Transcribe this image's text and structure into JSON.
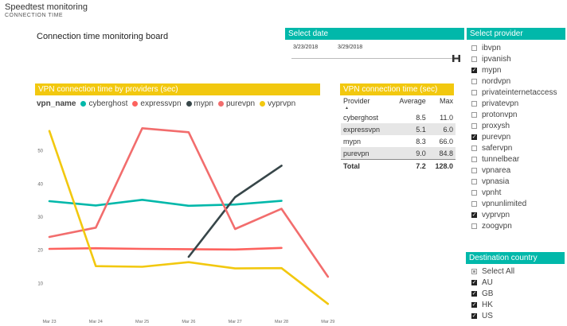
{
  "app": {
    "title": "Speedtest monitoring",
    "subtitle": "CONNECTION TIME"
  },
  "board_title": "Connection time monitoring board",
  "date_slicer": {
    "header": "Select date",
    "start": "3/23/2018",
    "end": "3/29/2018"
  },
  "provider_slicer": {
    "header": "Select provider",
    "items": [
      {
        "label": "ibvpn",
        "checked": false
      },
      {
        "label": "ipvanish",
        "checked": false
      },
      {
        "label": "mypn",
        "checked": true
      },
      {
        "label": "nordvpn",
        "checked": false
      },
      {
        "label": "privateinternetaccess",
        "checked": false
      },
      {
        "label": "privatevpn",
        "checked": false
      },
      {
        "label": "protonvpn",
        "checked": false
      },
      {
        "label": "proxysh",
        "checked": false
      },
      {
        "label": "purevpn",
        "checked": true
      },
      {
        "label": "safervpn",
        "checked": false
      },
      {
        "label": "tunnelbear",
        "checked": false
      },
      {
        "label": "vpnarea",
        "checked": false
      },
      {
        "label": "vpnasia",
        "checked": false
      },
      {
        "label": "vpnht",
        "checked": false
      },
      {
        "label": "vpnunlimited",
        "checked": false
      },
      {
        "label": "vyprvpn",
        "checked": true
      },
      {
        "label": "zoogvpn",
        "checked": false
      }
    ]
  },
  "destination_slicer": {
    "header": "Destination country",
    "items": [
      {
        "label": "Select All",
        "checked": false,
        "partial": true
      },
      {
        "label": "AU",
        "checked": true
      },
      {
        "label": "GB",
        "checked": true
      },
      {
        "label": "HK",
        "checked": true
      },
      {
        "label": "US",
        "checked": true
      }
    ]
  },
  "chart": {
    "header": "VPN connection time by providers (sec)",
    "legend_title": "vpn_name"
  },
  "table": {
    "header": "VPN connection time (sec)",
    "columns": [
      "Provider",
      "Average",
      "Max"
    ],
    "rows": [
      {
        "provider": "cyberghost",
        "average": "8.5",
        "max": "11.0"
      },
      {
        "provider": "expressvpn",
        "average": "5.1",
        "max": "6.0"
      },
      {
        "provider": "mypn",
        "average": "8.3",
        "max": "66.0"
      },
      {
        "provider": "purevpn",
        "average": "9.0",
        "max": "84.8"
      }
    ],
    "total": {
      "label": "Total",
      "average": "7.2",
      "max": "128.0"
    }
  },
  "chart_data": {
    "type": "line",
    "title": "VPN connection time by providers (sec)",
    "legend_title": "vpn_name",
    "legend_position": "top-left",
    "categories": [
      "Mar 23",
      "Mar 24",
      "Mar 25",
      "Mar 26",
      "Mar 27",
      "Mar 28",
      "Mar 29"
    ],
    "yticks": [
      10,
      20,
      30,
      40,
      50
    ],
    "ylim": [
      0,
      60
    ],
    "xlabel": "",
    "ylabel": "",
    "series": [
      {
        "name": "cyberghost",
        "color": "#01b8aa",
        "values": [
          34.8,
          33.5,
          35.2,
          33.4,
          33.8,
          34.9,
          null
        ]
      },
      {
        "name": "expressvpn",
        "color": "#fd625e",
        "values": [
          20.4,
          20.6,
          20.4,
          20.3,
          20.2,
          20.7,
          null
        ]
      },
      {
        "name": "mypn",
        "color": "#374649",
        "values": [
          null,
          null,
          null,
          18.0,
          36.0,
          45.5,
          null
        ]
      },
      {
        "name": "purevpn",
        "color": "#f26d6d",
        "values": [
          24.0,
          26.8,
          56.8,
          55.6,
          26.4,
          32.5,
          12.0
        ]
      },
      {
        "name": "vyprvpn",
        "color": "#f2c80f",
        "values": [
          56.0,
          15.2,
          15.0,
          16.4,
          14.5,
          14.6,
          3.8
        ]
      }
    ]
  }
}
